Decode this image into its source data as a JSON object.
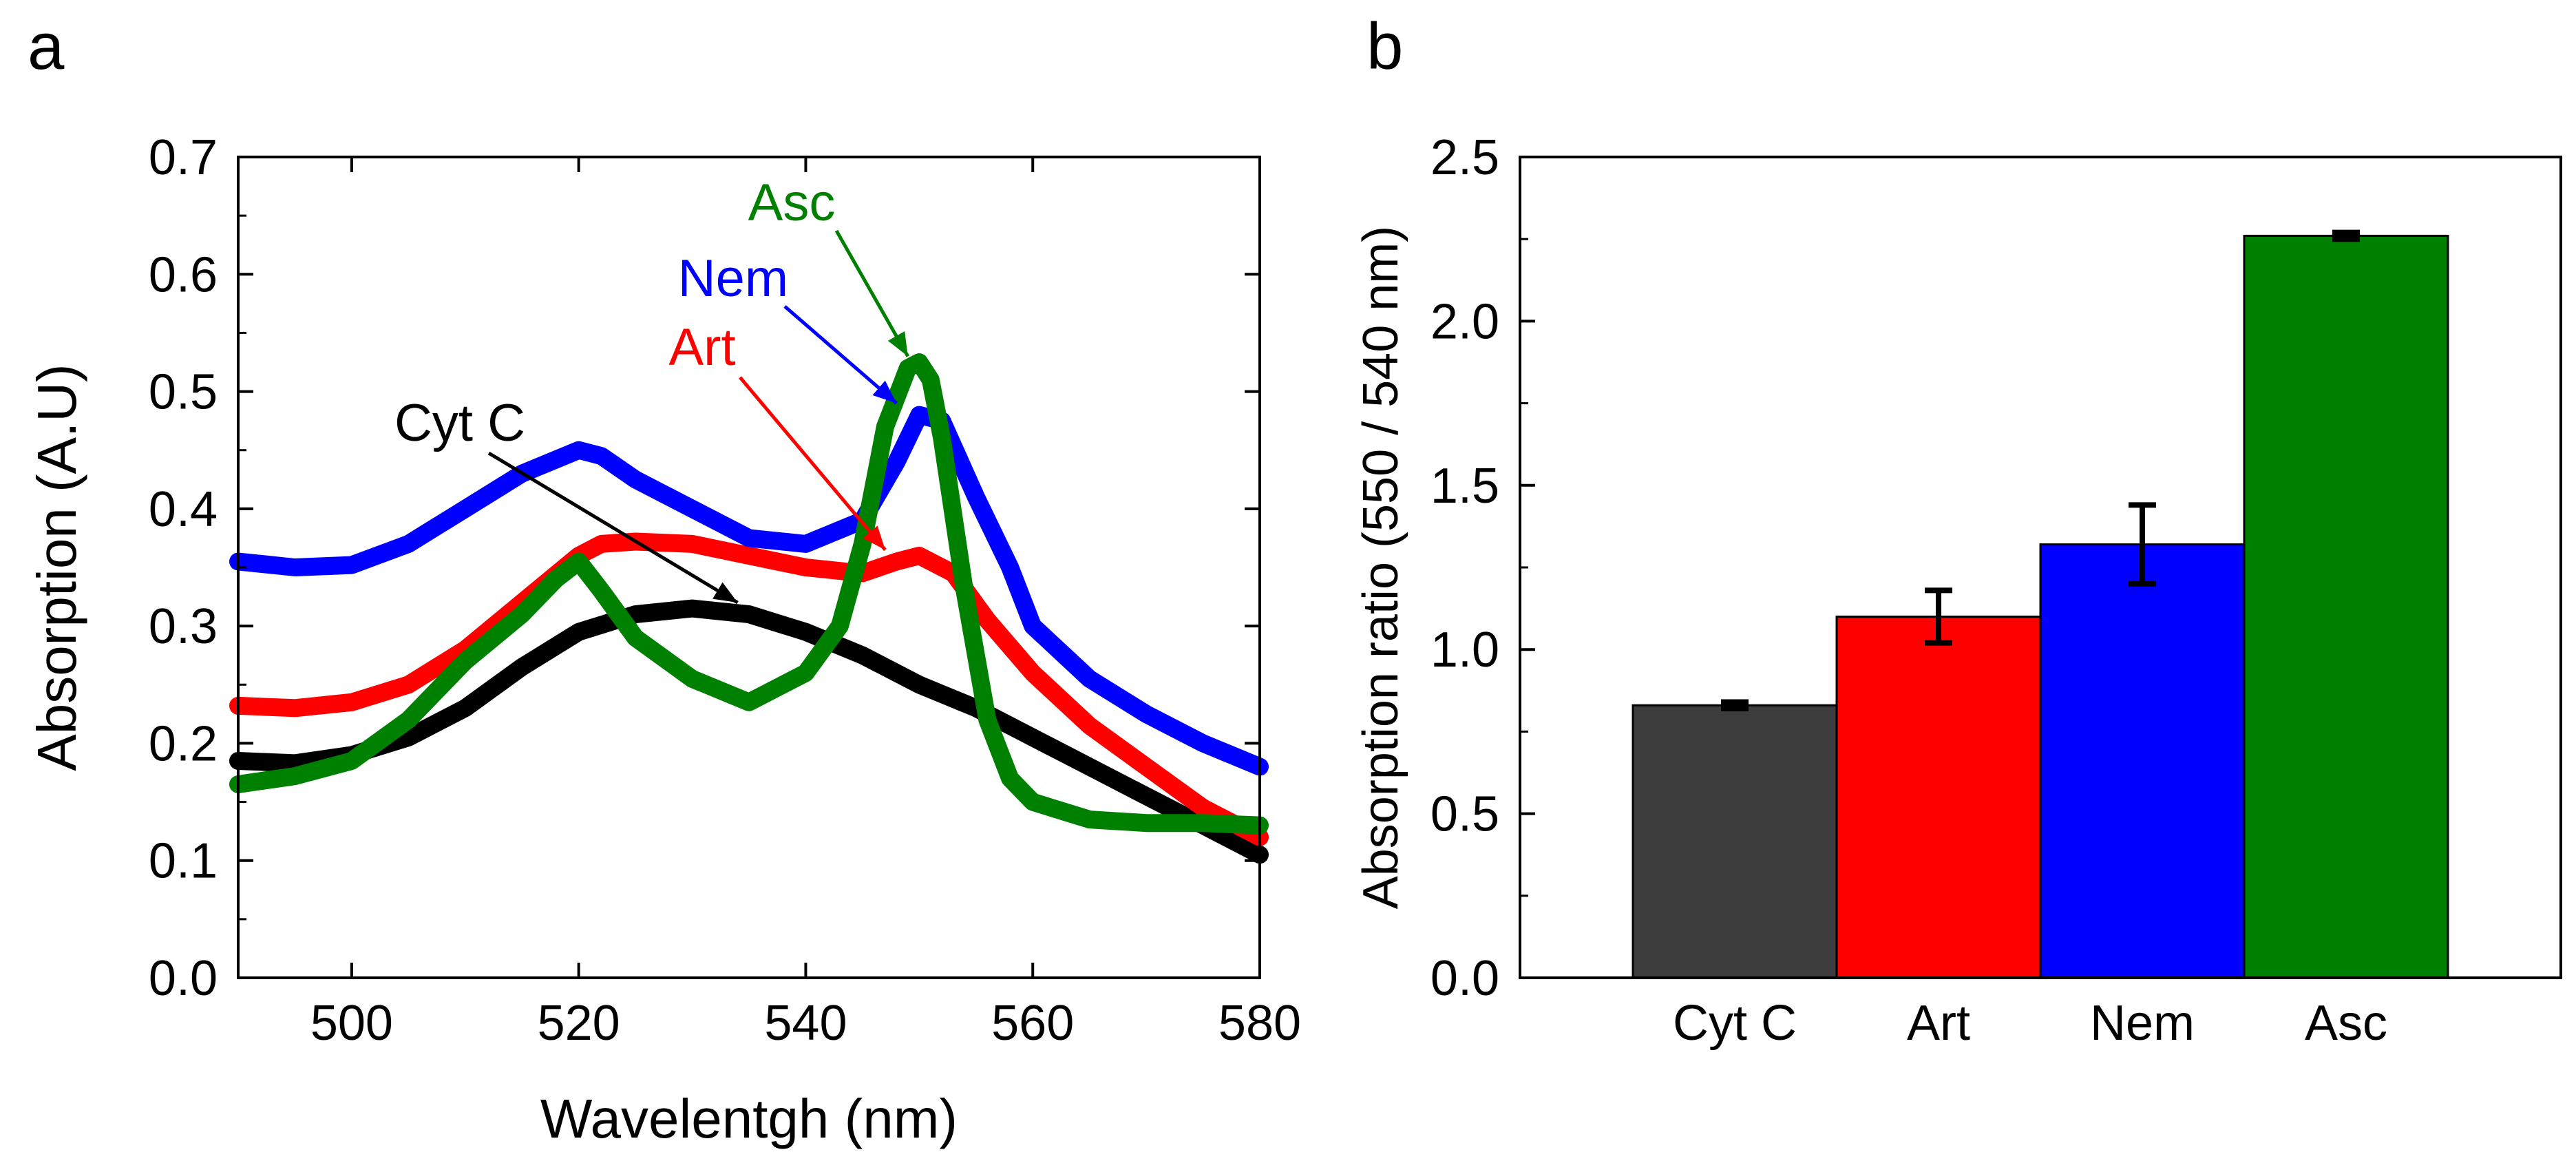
{
  "chart_data": [
    {
      "panel_label": "a",
      "type": "line",
      "xlabel": "Wavelentgh (nm)",
      "ylabel": "Absorption (A.U)",
      "xlim": [
        490,
        580
      ],
      "ylim": [
        0.0,
        0.7
      ],
      "xticks": [
        500,
        520,
        540,
        560,
        580
      ],
      "xtick_labels": [
        "500",
        "520",
        "540",
        "560",
        "580"
      ],
      "yticks": [
        0.0,
        0.1,
        0.2,
        0.3,
        0.4,
        0.5,
        0.6,
        0.7
      ],
      "ytick_labels": [
        "0.0",
        "0.1",
        "0.2",
        "0.3",
        "0.4",
        "0.5",
        "0.6",
        "0.7"
      ],
      "series": [
        {
          "name": "Cyt C",
          "color": "#000000",
          "x": [
            490,
            495,
            500,
            505,
            510,
            515,
            520,
            525,
            530,
            535,
            540,
            545,
            550,
            555,
            560,
            565,
            570,
            575,
            580
          ],
          "values": [
            0.185,
            0.183,
            0.19,
            0.205,
            0.23,
            0.265,
            0.295,
            0.31,
            0.315,
            0.31,
            0.295,
            0.275,
            0.25,
            0.23,
            0.205,
            0.18,
            0.155,
            0.13,
            0.105
          ]
        },
        {
          "name": "Art",
          "color": "#ff0000",
          "x": [
            490,
            495,
            500,
            505,
            510,
            515,
            520,
            522,
            525,
            530,
            535,
            540,
            545,
            548,
            550,
            553,
            556,
            560,
            565,
            570,
            575,
            580
          ],
          "values": [
            0.232,
            0.23,
            0.235,
            0.25,
            0.28,
            0.32,
            0.36,
            0.37,
            0.372,
            0.37,
            0.36,
            0.35,
            0.345,
            0.355,
            0.36,
            0.345,
            0.305,
            0.26,
            0.215,
            0.18,
            0.145,
            0.12
          ]
        },
        {
          "name": "Nem",
          "color": "#0000ff",
          "x": [
            490,
            495,
            500,
            505,
            510,
            515,
            520,
            522,
            525,
            530,
            535,
            540,
            545,
            548,
            550,
            552,
            555,
            558,
            560,
            565,
            570,
            575,
            580
          ],
          "values": [
            0.355,
            0.35,
            0.352,
            0.37,
            0.4,
            0.43,
            0.45,
            0.445,
            0.425,
            0.4,
            0.375,
            0.37,
            0.39,
            0.44,
            0.48,
            0.475,
            0.41,
            0.35,
            0.3,
            0.255,
            0.225,
            0.2,
            0.18
          ]
        },
        {
          "name": "Asc",
          "color": "#008000",
          "x": [
            490,
            495,
            500,
            505,
            510,
            515,
            518,
            520,
            522,
            525,
            530,
            535,
            540,
            543,
            545,
            547,
            549,
            550,
            551,
            552,
            554,
            556,
            558,
            560,
            565,
            570,
            575,
            580
          ],
          "values": [
            0.165,
            0.172,
            0.185,
            0.22,
            0.27,
            0.31,
            0.34,
            0.355,
            0.33,
            0.29,
            0.255,
            0.235,
            0.26,
            0.3,
            0.37,
            0.47,
            0.52,
            0.525,
            0.51,
            0.46,
            0.33,
            0.22,
            0.17,
            0.15,
            0.135,
            0.132,
            0.132,
            0.13
          ]
        }
      ],
      "annotations": [
        {
          "text": "Asc",
          "color": "#008000",
          "points_to": [
            549,
            0.53
          ]
        },
        {
          "text": "Nem",
          "color": "#0000ff",
          "points_to": [
            548,
            0.49
          ]
        },
        {
          "text": "Art",
          "color": "#ff0000",
          "points_to": [
            547,
            0.365
          ]
        },
        {
          "text": "Cyt C",
          "color": "#000000",
          "points_to": [
            534,
            0.32
          ]
        }
      ]
    },
    {
      "panel_label": "b",
      "type": "bar",
      "xlabel": "",
      "ylabel": "Absorption ratio (550 / 540 nm)",
      "ylim": [
        0.0,
        2.5
      ],
      "yticks": [
        0.0,
        0.5,
        1.0,
        1.5,
        2.0,
        2.5
      ],
      "ytick_labels": [
        "0.0",
        "0.5",
        "1.0",
        "1.5",
        "2.0",
        "2.5"
      ],
      "categories": [
        "Cyt C",
        "Art",
        "Nem",
        "Asc"
      ],
      "values": [
        0.83,
        1.1,
        1.32,
        2.26
      ],
      "errors": [
        0.01,
        0.08,
        0.12,
        0.01
      ],
      "colors": [
        "#3d3d3d",
        "#ff0000",
        "#0000ff",
        "#008000"
      ]
    }
  ]
}
